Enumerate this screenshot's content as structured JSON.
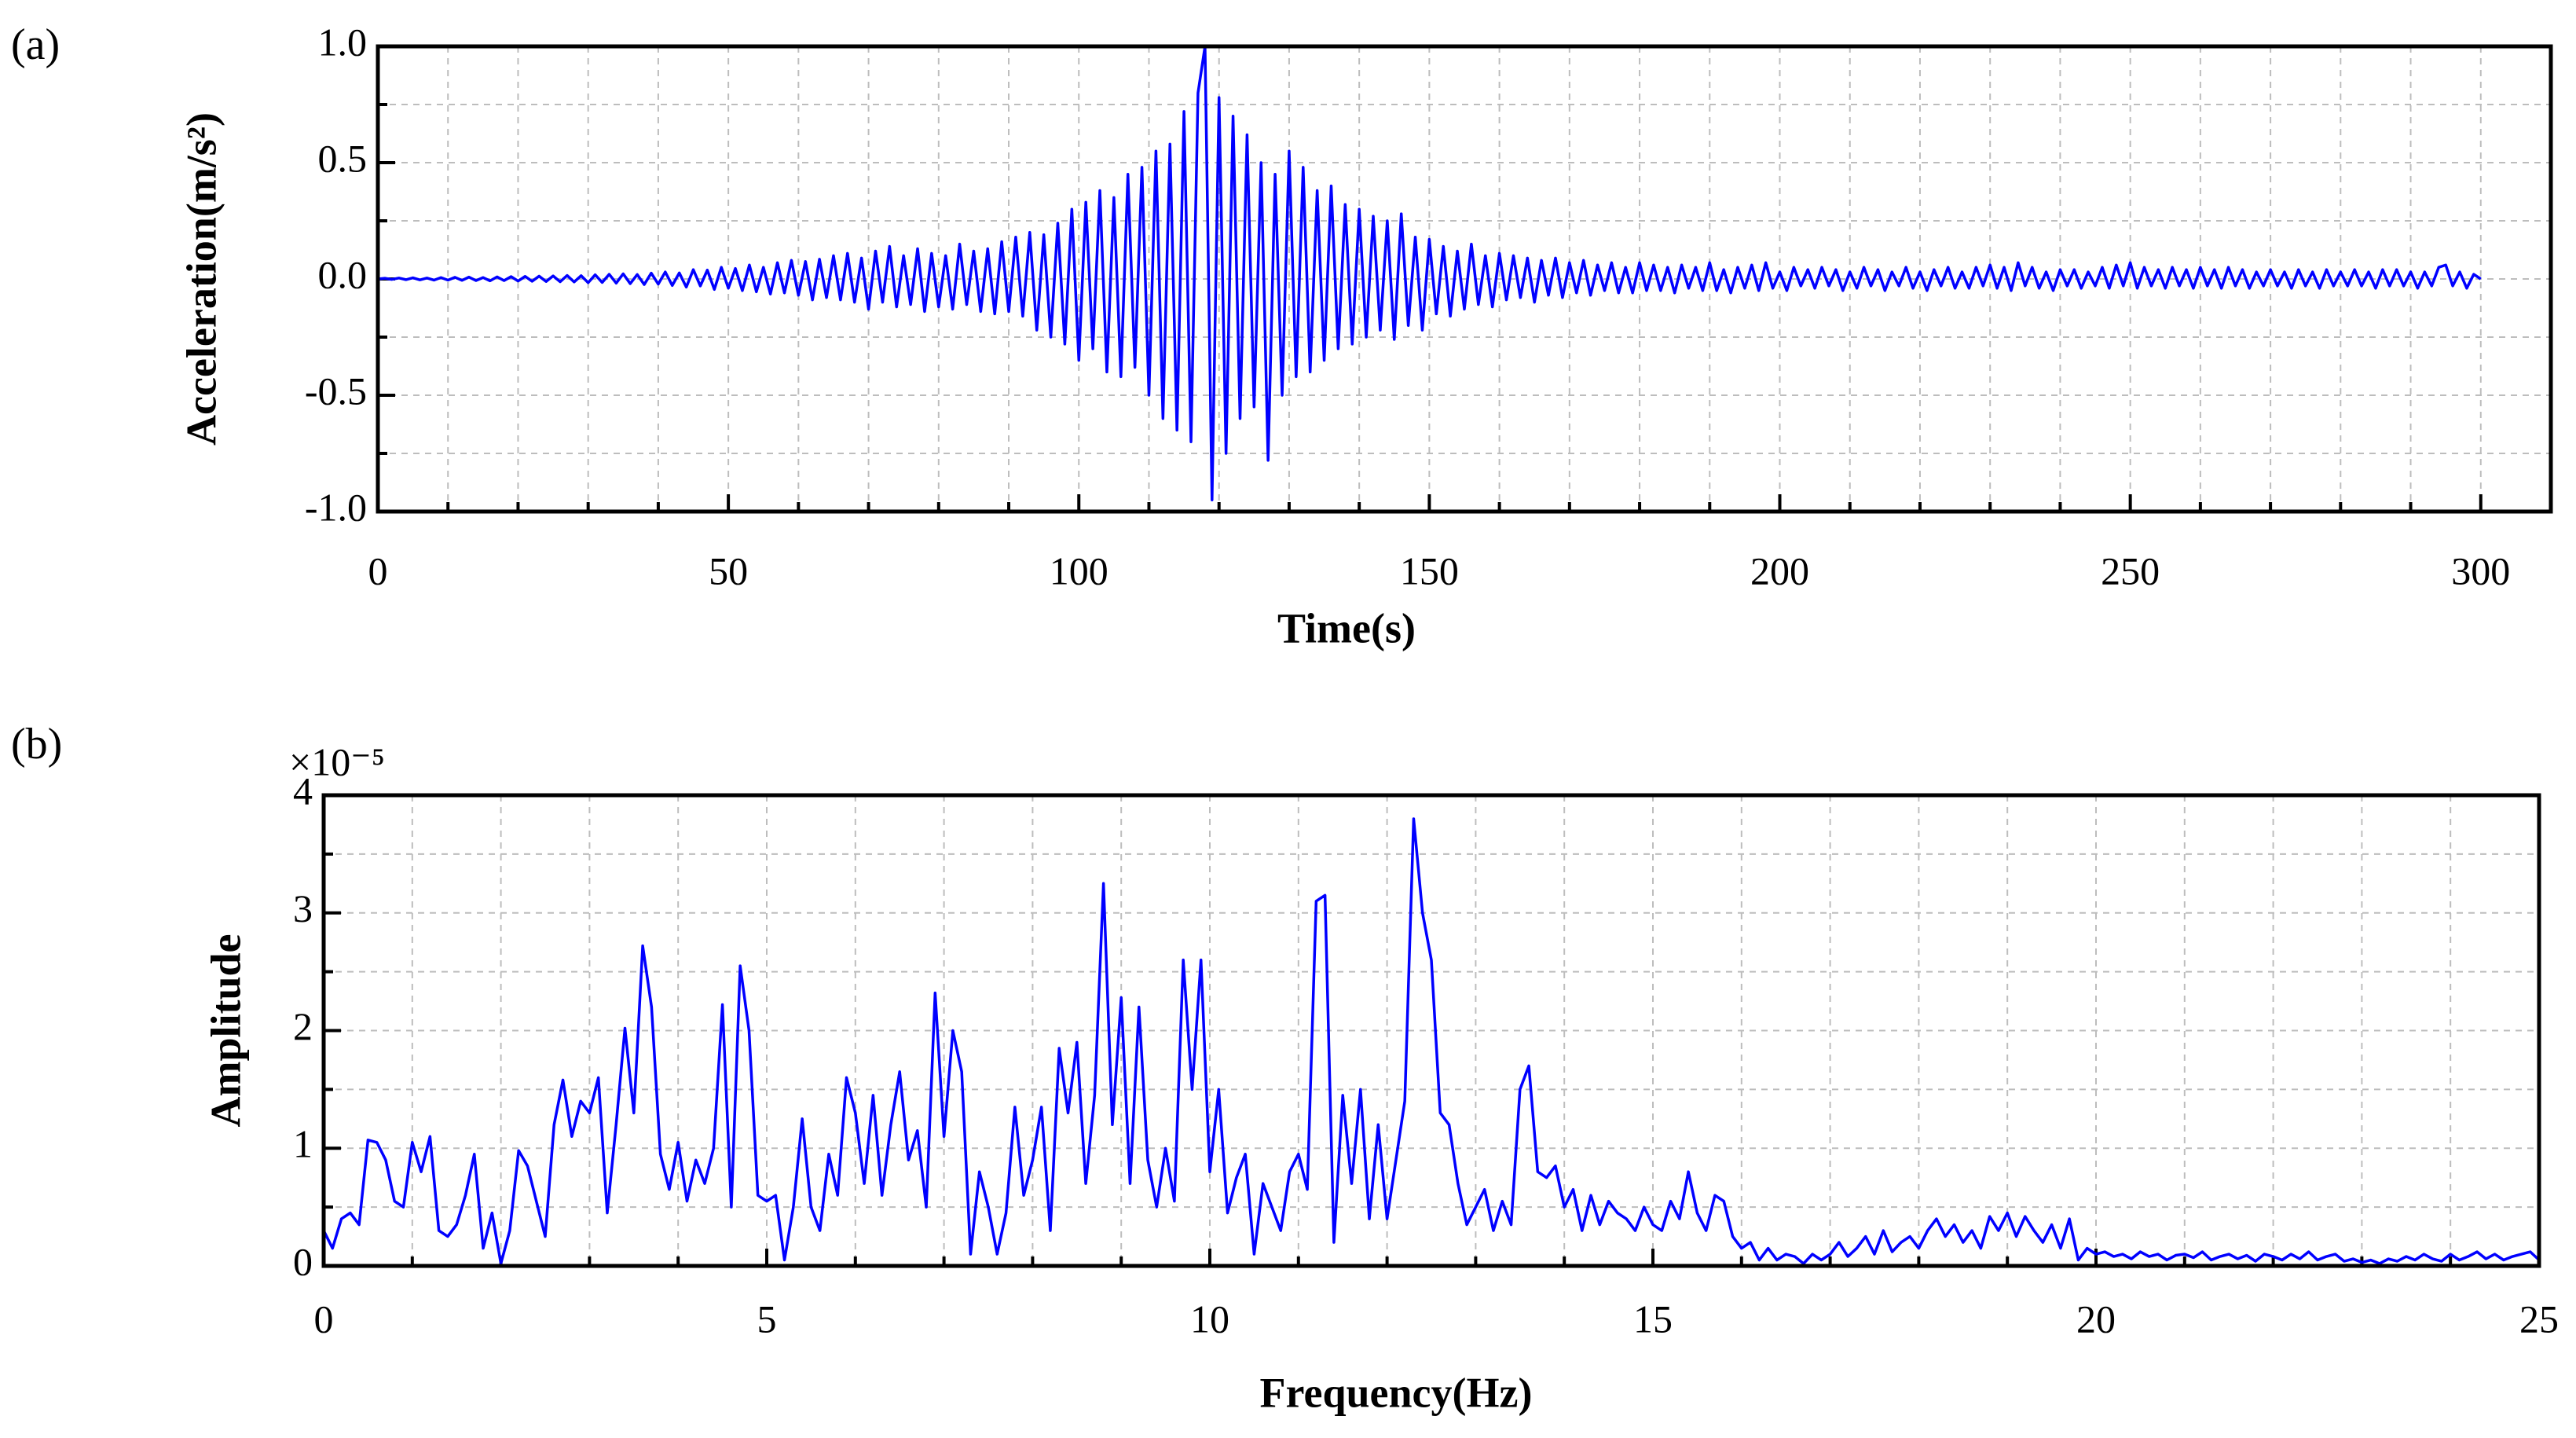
{
  "chart_data": [
    {
      "type": "line",
      "panel_label": "(a)",
      "xlabel": "Time(s)",
      "ylabel": "Acceleration(m/s²)",
      "color": "#0000ff",
      "grid": true,
      "xlim": [
        0,
        310
      ],
      "xticks": [
        0,
        50,
        100,
        150,
        200,
        250,
        300
      ],
      "xminorticks": [
        10,
        20,
        30,
        40,
        60,
        70,
        80,
        90,
        110,
        120,
        130,
        140,
        160,
        170,
        180,
        190,
        210,
        220,
        230,
        240,
        260,
        270,
        280,
        290
      ],
      "ylim": [
        -1,
        1
      ],
      "yticks": [
        {
          "value": -1,
          "label": "-1.0"
        },
        -0.5,
        {
          "value": 0,
          "label": "0.0"
        },
        0.5,
        {
          "value": 1,
          "label": "1.0"
        }
      ],
      "yminorticks": [
        -0.75,
        -0.25,
        0.25,
        0.75
      ],
      "x": [
        0,
        1,
        2,
        3,
        4,
        5,
        6,
        7,
        8,
        9,
        10,
        11,
        12,
        13,
        14,
        15,
        16,
        17,
        18,
        19,
        20,
        21,
        22,
        23,
        24,
        25,
        26,
        27,
        28,
        29,
        30,
        31,
        32,
        33,
        34,
        35,
        36,
        37,
        38,
        39,
        40,
        41,
        42,
        43,
        44,
        45,
        46,
        47,
        48,
        49,
        50,
        51,
        52,
        53,
        54,
        55,
        56,
        57,
        58,
        59,
        60,
        61,
        62,
        63,
        64,
        65,
        66,
        67,
        68,
        69,
        70,
        71,
        72,
        73,
        74,
        75,
        76,
        77,
        78,
        79,
        80,
        81,
        82,
        83,
        84,
        85,
        86,
        87,
        88,
        89,
        90,
        91,
        92,
        93,
        94,
        95,
        96,
        97,
        98,
        99,
        100,
        101,
        102,
        103,
        104,
        105,
        106,
        107,
        108,
        109,
        110,
        111,
        112,
        113,
        114,
        115,
        116,
        117,
        118,
        119,
        120,
        121,
        122,
        123,
        124,
        125,
        126,
        127,
        128,
        129,
        130,
        131,
        132,
        133,
        134,
        135,
        136,
        137,
        138,
        139,
        140,
        141,
        142,
        143,
        144,
        145,
        146,
        147,
        148,
        149,
        150,
        151,
        152,
        153,
        154,
        155,
        156,
        157,
        158,
        159,
        160,
        161,
        162,
        163,
        164,
        165,
        166,
        167,
        168,
        169,
        170,
        171,
        172,
        173,
        174,
        175,
        176,
        177,
        178,
        179,
        180,
        181,
        182,
        183,
        184,
        185,
        186,
        187,
        188,
        189,
        190,
        191,
        192,
        193,
        194,
        195,
        196,
        197,
        198,
        199,
        200,
        201,
        202,
        203,
        204,
        205,
        206,
        207,
        208,
        209,
        210,
        211,
        212,
        213,
        214,
        215,
        216,
        217,
        218,
        219,
        220,
        221,
        222,
        223,
        224,
        225,
        226,
        227,
        228,
        229,
        230,
        231,
        232,
        233,
        234,
        235,
        236,
        237,
        238,
        239,
        240,
        241,
        242,
        243,
        244,
        245,
        246,
        247,
        248,
        249,
        250,
        251,
        252,
        253,
        254,
        255,
        256,
        257,
        258,
        259,
        260,
        261,
        262,
        263,
        264,
        265,
        266,
        267,
        268,
        269,
        270,
        271,
        272,
        273,
        274,
        275,
        276,
        277,
        278,
        279,
        280,
        281,
        282,
        283,
        284,
        285,
        286,
        287,
        288,
        289,
        290,
        291,
        292,
        293,
        294,
        295,
        296,
        297,
        298,
        299,
        300
      ],
      "values": [
        0,
        0.003,
        -0.002,
        0.004,
        -0.003,
        0.005,
        -0.004,
        0.004,
        -0.005,
        0.006,
        -0.005,
        0.007,
        -0.006,
        0.008,
        -0.007,
        0.006,
        -0.008,
        0.009,
        -0.007,
        0.01,
        -0.009,
        0.011,
        -0.01,
        0.012,
        -0.011,
        0.013,
        -0.012,
        0.015,
        -0.013,
        0.014,
        -0.016,
        0.018,
        -0.015,
        0.02,
        -0.018,
        0.022,
        -0.02,
        0.019,
        -0.024,
        0.025,
        -0.022,
        0.03,
        -0.028,
        0.026,
        -0.035,
        0.04,
        -0.03,
        0.038,
        -0.045,
        0.05,
        -0.04,
        0.045,
        -0.05,
        0.06,
        -0.055,
        0.05,
        -0.065,
        0.07,
        -0.06,
        0.08,
        -0.07,
        0.075,
        -0.09,
        0.085,
        -0.08,
        0.1,
        -0.09,
        0.11,
        -0.1,
        0.09,
        -0.13,
        0.12,
        -0.1,
        0.14,
        -0.12,
        0.1,
        -0.11,
        0.13,
        -0.14,
        0.11,
        -0.12,
        0.1,
        -0.13,
        0.15,
        -0.11,
        0.12,
        -0.14,
        0.13,
        -0.15,
        0.16,
        -0.14,
        0.18,
        -0.16,
        0.2,
        -0.22,
        0.19,
        -0.25,
        0.24,
        -0.28,
        0.3,
        -0.35,
        0.33,
        -0.3,
        0.38,
        -0.4,
        0.35,
        -0.42,
        0.45,
        -0.38,
        0.48,
        -0.5,
        0.55,
        -0.6,
        0.58,
        -0.65,
        0.72,
        -0.7,
        0.8,
        1.0,
        -0.95,
        0.78,
        -0.75,
        0.7,
        -0.6,
        0.62,
        -0.55,
        0.5,
        -0.78,
        0.45,
        -0.5,
        0.55,
        -0.42,
        0.48,
        -0.4,
        0.38,
        -0.35,
        0.4,
        -0.3,
        0.32,
        -0.28,
        0.3,
        -0.25,
        0.27,
        -0.22,
        0.25,
        -0.26,
        0.28,
        -0.2,
        0.18,
        -0.22,
        0.17,
        -0.15,
        0.14,
        -0.16,
        0.12,
        -0.13,
        0.15,
        -0.11,
        0.1,
        -0.12,
        0.11,
        -0.09,
        0.1,
        -0.08,
        0.09,
        -0.1,
        0.08,
        -0.07,
        0.09,
        -0.08,
        0.07,
        -0.06,
        0.08,
        -0.07,
        0.06,
        -0.05,
        0.07,
        -0.06,
        0.05,
        -0.06,
        0.07,
        -0.05,
        0.06,
        -0.05,
        0.05,
        -0.06,
        0.06,
        -0.04,
        0.05,
        -0.05,
        0.07,
        -0.05,
        0.04,
        -0.06,
        0.05,
        -0.04,
        0.06,
        -0.05,
        0.07,
        -0.04,
        0.03,
        -0.05,
        0.05,
        -0.03,
        0.04,
        -0.04,
        0.05,
        -0.03,
        0.04,
        -0.05,
        0.03,
        -0.04,
        0.05,
        -0.03,
        0.04,
        -0.05,
        0.03,
        -0.03,
        0.05,
        -0.04,
        0.03,
        -0.05,
        0.04,
        -0.03,
        0.05,
        -0.04,
        0.03,
        -0.04,
        0.05,
        -0.03,
        0.06,
        -0.04,
        0.05,
        -0.05,
        0.07,
        -0.03,
        0.05,
        -0.04,
        0.03,
        -0.05,
        0.04,
        -0.03,
        0.04,
        -0.04,
        0.03,
        -0.03,
        0.05,
        -0.04,
        0.06,
        -0.03,
        0.07,
        -0.04,
        0.05,
        -0.03,
        0.04,
        -0.04,
        0.05,
        -0.03,
        0.04,
        -0.04,
        0.05,
        -0.03,
        0.04,
        -0.04,
        0.05,
        -0.03,
        0.04,
        -0.04,
        0.03,
        -0.03,
        0.04,
        -0.03,
        0.03,
        -0.04,
        0.04,
        -0.03,
        0.03,
        -0.04,
        0.04,
        -0.03,
        0.03,
        -0.03,
        0.04,
        -0.03,
        0.03,
        -0.04,
        0.04,
        -0.03,
        0.04,
        -0.03,
        0.03,
        -0.04,
        0.03,
        -0.03,
        0.05,
        0.06,
        -0.03,
        0.03,
        -0.04,
        0.02,
        0.0
      ]
    },
    {
      "type": "line",
      "panel_label": "(b)",
      "xlabel": "Frequency(Hz)",
      "ylabel": "Amplitude",
      "y_multiplier": "×10⁻⁵",
      "color": "#0000ff",
      "grid": true,
      "xlim": [
        0,
        25
      ],
      "xticks": [
        0,
        5,
        10,
        15,
        20,
        25
      ],
      "xminorticks": [
        1,
        2,
        3,
        4,
        6,
        7,
        8,
        9,
        11,
        12,
        13,
        14,
        16,
        17,
        18,
        19,
        21,
        22,
        23,
        24
      ],
      "ylim": [
        0,
        4
      ],
      "yticks": [
        0,
        1,
        2,
        3,
        4
      ],
      "yminorticks": [
        0.5,
        1.5,
        2.5,
        3.5
      ],
      "x": [
        0,
        0.1,
        0.2,
        0.3,
        0.4,
        0.5,
        0.6,
        0.7,
        0.8,
        0.9,
        1,
        1.1,
        1.2,
        1.3,
        1.4,
        1.5,
        1.6,
        1.7,
        1.8,
        1.9,
        2,
        2.1,
        2.2,
        2.3,
        2.4,
        2.5,
        2.6,
        2.7,
        2.8,
        2.9,
        3,
        3.1,
        3.2,
        3.3,
        3.4,
        3.5,
        3.6,
        3.7,
        3.8,
        3.9,
        4,
        4.1,
        4.2,
        4.3,
        4.4,
        4.5,
        4.6,
        4.7,
        4.8,
        4.9,
        5,
        5.1,
        5.2,
        5.3,
        5.4,
        5.5,
        5.6,
        5.7,
        5.8,
        5.9,
        6,
        6.1,
        6.2,
        6.3,
        6.4,
        6.5,
        6.6,
        6.7,
        6.8,
        6.9,
        7,
        7.1,
        7.2,
        7.3,
        7.4,
        7.5,
        7.6,
        7.7,
        7.8,
        7.9,
        8,
        8.1,
        8.2,
        8.3,
        8.4,
        8.5,
        8.6,
        8.7,
        8.8,
        8.9,
        9,
        9.1,
        9.2,
        9.3,
        9.4,
        9.5,
        9.6,
        9.7,
        9.8,
        9.9,
        10,
        10.1,
        10.2,
        10.3,
        10.4,
        10.5,
        10.6,
        10.7,
        10.8,
        10.9,
        11,
        11.1,
        11.2,
        11.3,
        11.4,
        11.5,
        11.6,
        11.7,
        11.8,
        11.9,
        12,
        12.1,
        12.2,
        12.3,
        12.4,
        12.5,
        12.6,
        12.7,
        12.8,
        12.9,
        13,
        13.1,
        13.2,
        13.3,
        13.4,
        13.5,
        13.6,
        13.7,
        13.8,
        13.9,
        14,
        14.1,
        14.2,
        14.3,
        14.4,
        14.5,
        14.6,
        14.7,
        14.8,
        14.9,
        15,
        15.1,
        15.2,
        15.3,
        15.4,
        15.5,
        15.6,
        15.7,
        15.8,
        15.9,
        16,
        16.1,
        16.2,
        16.3,
        16.4,
        16.5,
        16.6,
        16.7,
        16.8,
        16.9,
        17,
        17.1,
        17.2,
        17.3,
        17.4,
        17.5,
        17.6,
        17.7,
        17.8,
        17.9,
        18,
        18.1,
        18.2,
        18.3,
        18.4,
        18.5,
        18.6,
        18.7,
        18.8,
        18.9,
        19,
        19.1,
        19.2,
        19.3,
        19.4,
        19.5,
        19.6,
        19.7,
        19.8,
        19.9,
        20,
        20.1,
        20.2,
        20.3,
        20.4,
        20.5,
        20.6,
        20.7,
        20.8,
        20.9,
        21,
        21.1,
        21.2,
        21.3,
        21.4,
        21.5,
        21.6,
        21.7,
        21.8,
        21.9,
        22,
        22.1,
        22.2,
        22.3,
        22.4,
        22.5,
        22.6,
        22.7,
        22.8,
        22.9,
        23,
        23.1,
        23.2,
        23.3,
        23.4,
        23.5,
        23.6,
        23.7,
        23.8,
        23.9,
        24,
        24.1,
        24.2,
        24.3,
        24.4,
        24.5,
        24.6,
        24.7,
        24.8,
        24.9,
        25
      ],
      "values": [
        0.3,
        0.15,
        0.4,
        0.45,
        0.35,
        1.07,
        1.05,
        0.9,
        0.55,
        0.5,
        1.05,
        0.8,
        1.1,
        0.3,
        0.25,
        0.35,
        0.6,
        0.95,
        0.15,
        0.45,
        0.02,
        0.3,
        0.98,
        0.85,
        0.55,
        0.25,
        1.2,
        1.58,
        1.1,
        1.4,
        1.3,
        1.6,
        0.45,
        1.2,
        2.02,
        1.3,
        2.72,
        2.2,
        0.95,
        0.65,
        1.05,
        0.55,
        0.9,
        0.7,
        1.0,
        2.22,
        0.5,
        2.55,
        2.0,
        0.6,
        0.55,
        0.6,
        0.05,
        0.5,
        1.25,
        0.5,
        0.3,
        0.95,
        0.6,
        1.6,
        1.3,
        0.7,
        1.45,
        0.6,
        1.2,
        1.65,
        0.9,
        1.15,
        0.5,
        2.32,
        1.1,
        2.0,
        1.65,
        0.1,
        0.8,
        0.5,
        0.1,
        0.45,
        1.35,
        0.6,
        0.9,
        1.35,
        0.3,
        1.85,
        1.3,
        1.9,
        0.7,
        1.45,
        3.25,
        1.2,
        2.28,
        0.7,
        2.2,
        0.9,
        0.5,
        1.0,
        0.55,
        2.6,
        1.5,
        2.6,
        0.8,
        1.5,
        0.45,
        0.75,
        0.95,
        0.1,
        0.7,
        0.5,
        0.3,
        0.8,
        0.95,
        0.65,
        3.1,
        3.15,
        0.2,
        1.45,
        0.7,
        1.5,
        0.4,
        1.2,
        0.4,
        0.9,
        1.4,
        3.8,
        3.0,
        2.6,
        1.3,
        1.2,
        0.7,
        0.35,
        0.5,
        0.65,
        0.3,
        0.55,
        0.35,
        1.5,
        1.7,
        0.8,
        0.75,
        0.85,
        0.5,
        0.65,
        0.3,
        0.6,
        0.35,
        0.55,
        0.45,
        0.4,
        0.3,
        0.5,
        0.35,
        0.3,
        0.55,
        0.4,
        0.8,
        0.45,
        0.3,
        0.6,
        0.55,
        0.25,
        0.15,
        0.2,
        0.05,
        0.15,
        0.05,
        0.1,
        0.08,
        0.02,
        0.1,
        0.05,
        0.1,
        0.2,
        0.08,
        0.15,
        0.25,
        0.1,
        0.3,
        0.12,
        0.2,
        0.25,
        0.15,
        0.3,
        0.4,
        0.25,
        0.35,
        0.2,
        0.3,
        0.15,
        0.42,
        0.3,
        0.45,
        0.25,
        0.42,
        0.3,
        0.2,
        0.35,
        0.15,
        0.4,
        0.05,
        0.15,
        0.1,
        0.12,
        0.08,
        0.1,
        0.06,
        0.12,
        0.08,
        0.1,
        0.05,
        0.09,
        0.1,
        0.07,
        0.12,
        0.05,
        0.08,
        0.1,
        0.06,
        0.09,
        0.04,
        0.1,
        0.08,
        0.05,
        0.1,
        0.06,
        0.12,
        0.05,
        0.08,
        0.1,
        0.04,
        0.06,
        0.03,
        0.05,
        0.02,
        0.06,
        0.04,
        0.08,
        0.05,
        0.1,
        0.06,
        0.04,
        0.1,
        0.05,
        0.08,
        0.12,
        0.06,
        0.1,
        0.05,
        0.08,
        0.1,
        0.12,
        0.05
      ]
    }
  ]
}
